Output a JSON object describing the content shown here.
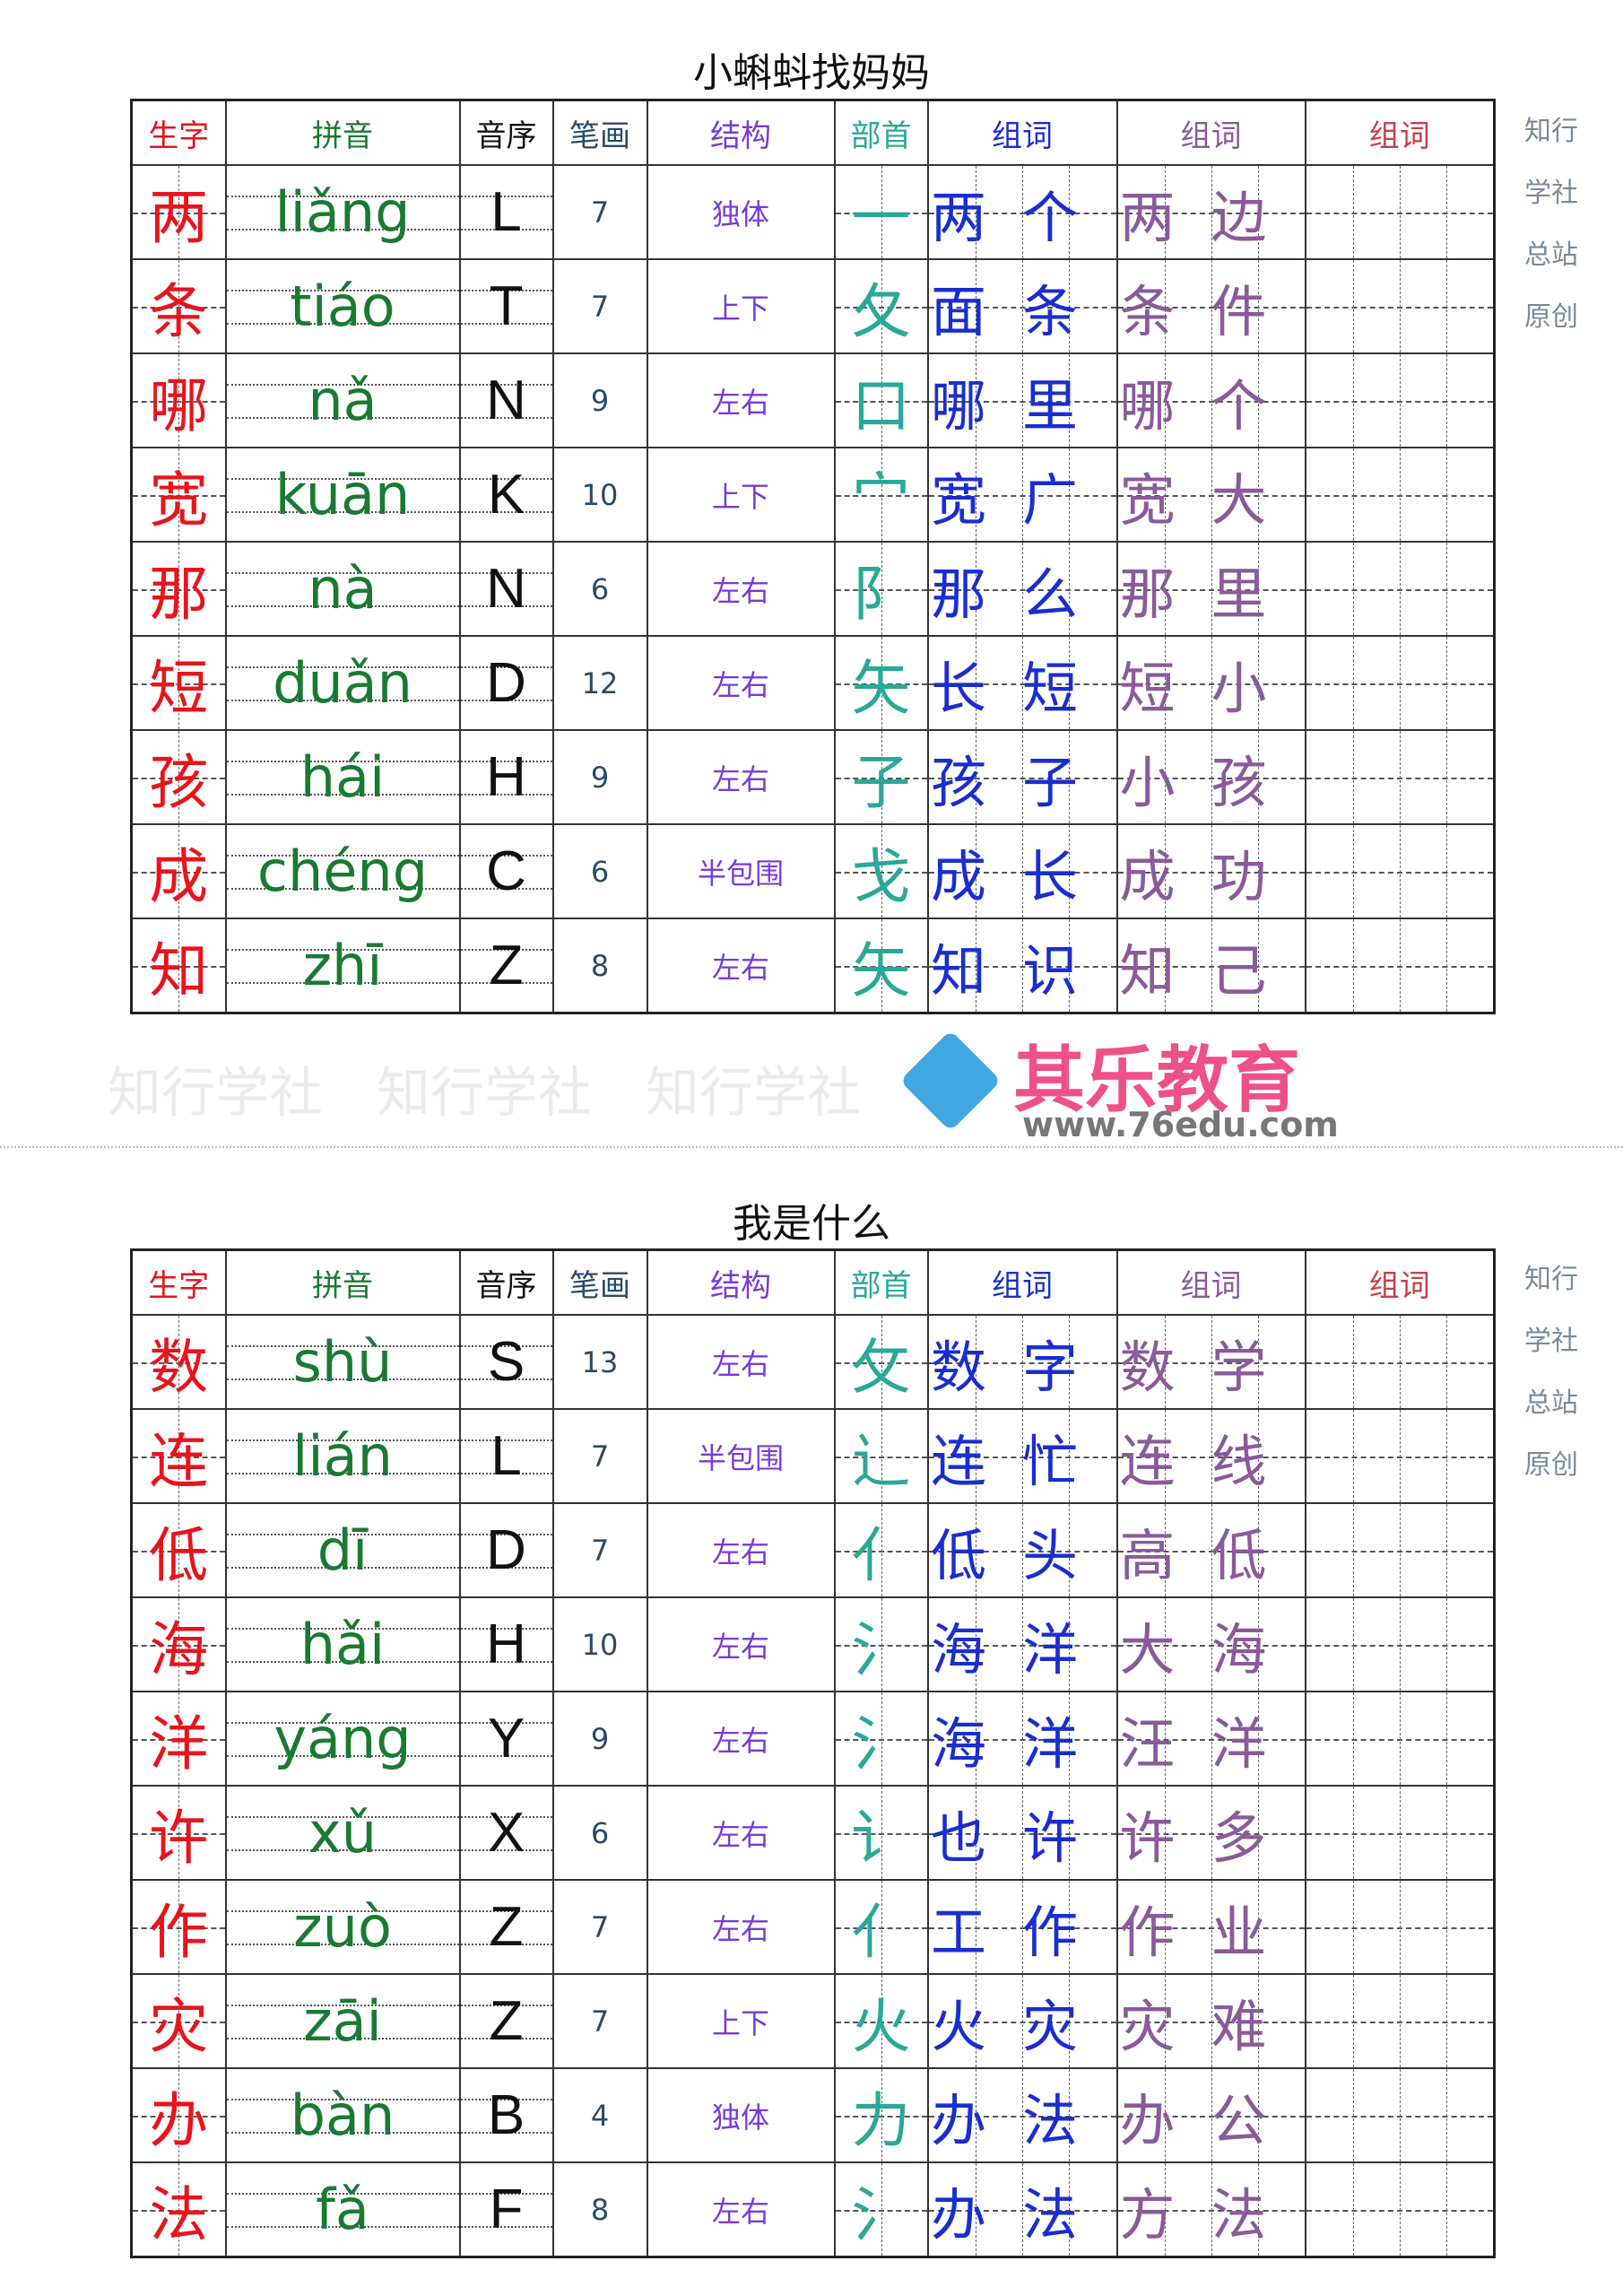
{
  "headers": [
    "生字",
    "拼音",
    "音序",
    "笔画",
    "结构",
    "部首",
    "组词",
    "组词",
    "组词"
  ],
  "header_colors": [
    "#e8141c",
    "#1a7a32",
    "#111111",
    "#2a4a6a",
    "#7a3ad8",
    "#2aa898",
    "#1a2ed0",
    "#8a5a9a",
    "#c8404a"
  ],
  "side_text": [
    "知行",
    "学社",
    "总站",
    "原创"
  ],
  "watermark": "知行学社",
  "logo": {
    "name": "其乐教育",
    "url": "www.76edu.com"
  },
  "sections": [
    {
      "title": "小蝌蚪找妈妈",
      "rows": [
        [
          "两",
          "liǎng",
          "L",
          "7",
          "独体",
          "一",
          "两个",
          "两边"
        ],
        [
          "条",
          "tiáo",
          "T",
          "7",
          "上下",
          "夂",
          "面条",
          "条件"
        ],
        [
          "哪",
          "nǎ",
          "N",
          "9",
          "左右",
          "口",
          "哪里",
          "哪个"
        ],
        [
          "宽",
          "kuān",
          "K",
          "10",
          "上下",
          "宀",
          "宽广",
          "宽大"
        ],
        [
          "那",
          "nà",
          "N",
          "6",
          "左右",
          "阝",
          "那么",
          "那里"
        ],
        [
          "短",
          "duǎn",
          "D",
          "12",
          "左右",
          "矢",
          "长短",
          "短小"
        ],
        [
          "孩",
          "hái",
          "H",
          "9",
          "左右",
          "子",
          "孩子",
          "小孩"
        ],
        [
          "成",
          "chéng",
          "C",
          "6",
          "半包围",
          "戈",
          "成长",
          "成功"
        ],
        [
          "知",
          "zhī",
          "Z",
          "8",
          "左右",
          "矢",
          "知识",
          "知己"
        ]
      ]
    },
    {
      "title": "我是什么",
      "rows": [
        [
          "数",
          "shù",
          "S",
          "13",
          "左右",
          "攵",
          "数字",
          "数学"
        ],
        [
          "连",
          "lián",
          "L",
          "7",
          "半包围",
          "辶",
          "连忙",
          "连线"
        ],
        [
          "低",
          "dī",
          "D",
          "7",
          "左右",
          "亻",
          "低头",
          "高低"
        ],
        [
          "海",
          "hǎi",
          "H",
          "10",
          "左右",
          "氵",
          "海洋",
          "大海"
        ],
        [
          "洋",
          "yáng",
          "Y",
          "9",
          "左右",
          "氵",
          "海洋",
          "汪洋"
        ],
        [
          "许",
          "xǔ",
          "X",
          "6",
          "左右",
          "讠",
          "也许",
          "许多"
        ],
        [
          "作",
          "zuò",
          "Z",
          "7",
          "左右",
          "亻",
          "工作",
          "作业"
        ],
        [
          "灾",
          "zāi",
          "Z",
          "7",
          "上下",
          "火",
          "火灾",
          "灾难"
        ],
        [
          "办",
          "bàn",
          "B",
          "4",
          "独体",
          "力",
          "办法",
          "办公"
        ],
        [
          "法",
          "fǎ",
          "F",
          "8",
          "左右",
          "氵",
          "办法",
          "方法"
        ]
      ]
    }
  ]
}
